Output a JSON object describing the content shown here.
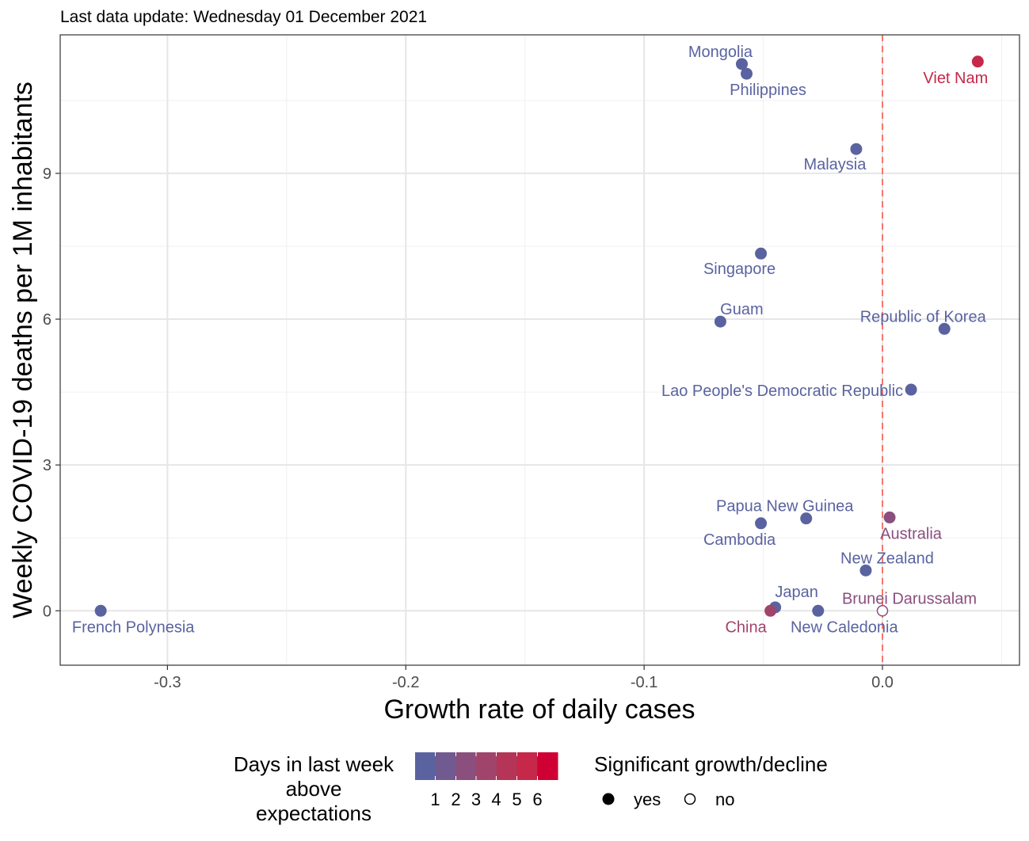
{
  "chart_data": {
    "type": "scatter",
    "subtitle": "Last data update: Wednesday 01 December 2021",
    "xlabel": "Growth rate of daily cases",
    "ylabel": "Weekly COVID-19 deaths per 1M inhabitants",
    "xlim": [
      -0.345,
      0.0575
    ],
    "ylim": [
      -1.12,
      11.85
    ],
    "x_ticks": [
      -0.3,
      -0.2,
      -0.1,
      0.0
    ],
    "x_tick_labels": [
      "-0.3",
      "-0.2",
      "-0.1",
      "0.0"
    ],
    "y_ticks": [
      0,
      3,
      6,
      9
    ],
    "y_tick_labels": [
      "0",
      "3",
      "6",
      "9"
    ],
    "grid": true,
    "reference_line": {
      "x": 0,
      "style": "dashed",
      "color": "#f8766d"
    },
    "points": [
      {
        "label": "Mongolia",
        "x": -0.059,
        "y": 11.25,
        "days": 0,
        "significant": true
      },
      {
        "label": "Philippines",
        "x": -0.057,
        "y": 11.05,
        "days": 0,
        "significant": true
      },
      {
        "label": "Viet Nam",
        "x": 0.04,
        "y": 11.3,
        "days": 5,
        "significant": true
      },
      {
        "label": "Malaysia",
        "x": -0.011,
        "y": 9.5,
        "days": 0,
        "significant": true
      },
      {
        "label": "Singapore",
        "x": -0.051,
        "y": 7.35,
        "days": 0,
        "significant": true
      },
      {
        "label": "Guam",
        "x": -0.068,
        "y": 5.95,
        "days": 0,
        "significant": true
      },
      {
        "label": "Republic of Korea",
        "x": 0.026,
        "y": 5.8,
        "days": 0,
        "significant": true
      },
      {
        "label": "Lao People's Democratic Republic",
        "x": 0.012,
        "y": 4.55,
        "days": 0,
        "significant": true
      },
      {
        "label": "Papua New Guinea",
        "x": -0.032,
        "y": 1.9,
        "days": 0,
        "significant": true
      },
      {
        "label": "Cambodia",
        "x": -0.051,
        "y": 1.8,
        "days": 0,
        "significant": true
      },
      {
        "label": "Australia",
        "x": 0.003,
        "y": 1.92,
        "days": 2,
        "significant": true
      },
      {
        "label": "New Zealand",
        "x": -0.007,
        "y": 0.83,
        "days": 0,
        "significant": true
      },
      {
        "label": "Japan",
        "x": -0.045,
        "y": 0.07,
        "days": 0,
        "significant": true
      },
      {
        "label": "China",
        "x": -0.047,
        "y": 0.0,
        "days": 3,
        "significant": true
      },
      {
        "label": "New Caledonia",
        "x": -0.027,
        "y": 0.0,
        "days": 0,
        "significant": true
      },
      {
        "label": "Brunei Darussalam",
        "x": 0.0,
        "y": 0.0,
        "days": 2,
        "significant": false
      },
      {
        "label": "French Polynesia",
        "x": -0.328,
        "y": 0.0,
        "days": 0,
        "significant": true
      }
    ],
    "color_scale": {
      "title": "Days in last week above expectations",
      "ticks": [
        "1",
        "2",
        "3",
        "4",
        "5",
        "6"
      ],
      "colors": [
        "#5a63a0",
        "#715a8f",
        "#8a4f7d",
        "#a1446b",
        "#b43558",
        "#c52848",
        "#cf0033"
      ]
    },
    "shape_legend": {
      "title": "Significant growth/decline",
      "items": [
        {
          "label": "yes",
          "filled": true
        },
        {
          "label": "no",
          "filled": false
        }
      ]
    }
  }
}
